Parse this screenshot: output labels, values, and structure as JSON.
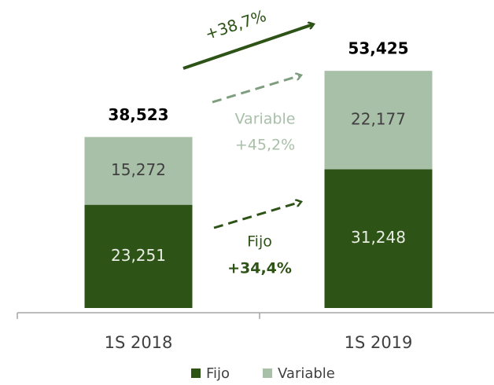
{
  "chart_data": {
    "type": "stacked_bar",
    "categories": [
      "1S 2018",
      "1S 2019"
    ],
    "series": [
      {
        "name": "Fijo",
        "color": "#2e5317",
        "values": [
          23251,
          31248
        ],
        "value_labels": [
          "23,251",
          "31,248"
        ]
      },
      {
        "name": "Variable",
        "color": "#a8bfa8",
        "values": [
          15272,
          22177
        ],
        "value_labels": [
          "15,272",
          "22,177"
        ]
      }
    ],
    "totals": [
      38523,
      53425
    ],
    "total_labels": [
      "38,523",
      "53,425"
    ],
    "annotations": [
      "+38,7%",
      "Variable",
      "+45,2%",
      "Fijo",
      "+34,4%"
    ],
    "ylim": [
      0,
      60000
    ],
    "legend": "bottom"
  }
}
